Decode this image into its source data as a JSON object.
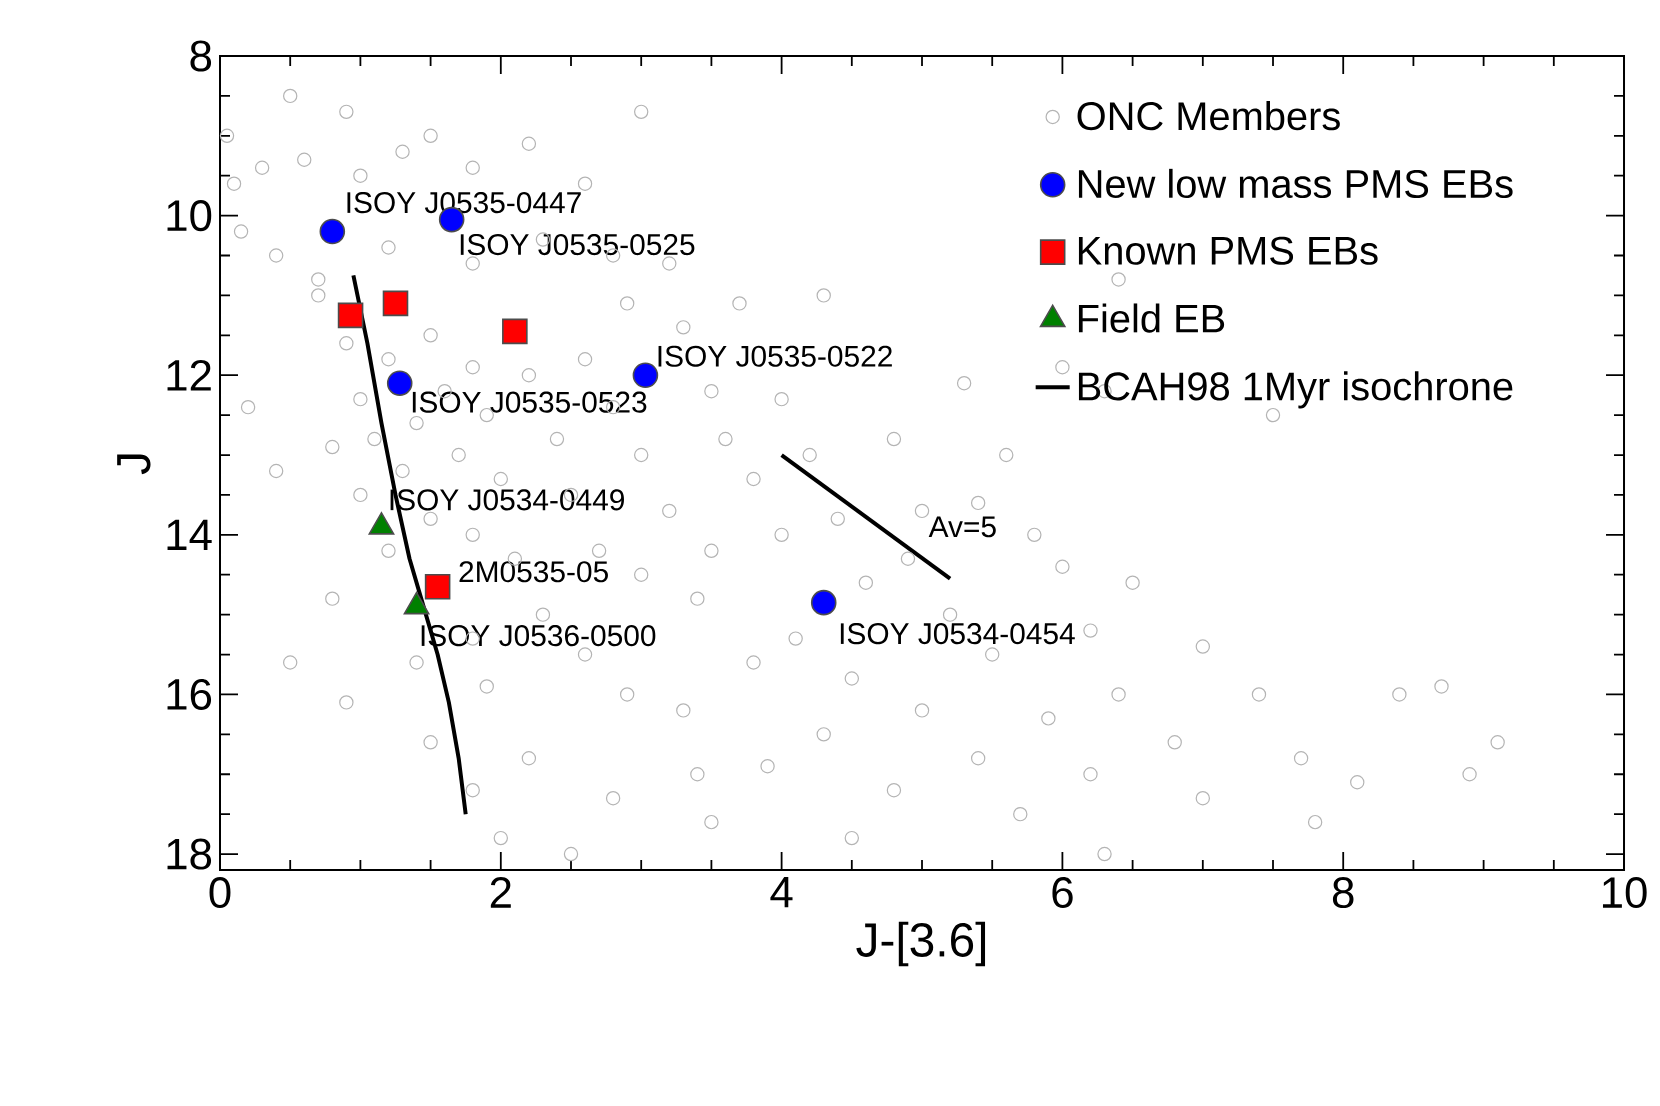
{
  "chart_data": {
    "type": "scatter",
    "xlabel": "J-[3.6]",
    "ylabel": "J",
    "xlim": [
      0,
      10
    ],
    "ylim": [
      18.2,
      8
    ],
    "xticks": [
      0,
      2,
      4,
      6,
      8,
      10
    ],
    "yticks": [
      8,
      10,
      12,
      14,
      16,
      18
    ],
    "legend": "top right",
    "series": [
      {
        "name": "ONC Members",
        "type": "scatter",
        "marker": "circle",
        "color": "#b4b4b4",
        "x": [
          0.05,
          0.1,
          0.15,
          0.3,
          0.5,
          0.6,
          0.9,
          1.0,
          1.3,
          1.5,
          1.8,
          2.2,
          3.0,
          2.6,
          0.4,
          0.7,
          1.2,
          1.8,
          2.3,
          2.8,
          3.2,
          0.9,
          1.0,
          1.1,
          1.2,
          1.3,
          1.4,
          1.5,
          1.6,
          1.7,
          1.8,
          1.9,
          2.0,
          2.2,
          2.4,
          2.6,
          2.5,
          2.8,
          3.0,
          1.2,
          1.5,
          1.8,
          2.1,
          1.0,
          0.8,
          0.7,
          2.9,
          3.3,
          3.5,
          3.6,
          3.2,
          3.8,
          4.0,
          4.2,
          2.7,
          3.0,
          3.4,
          2.3,
          1.8,
          1.4,
          1.9,
          2.6,
          2.9,
          3.3,
          3.8,
          3.5,
          4.0,
          4.4,
          4.6,
          4.1,
          4.5,
          4.9,
          5.0,
          4.8,
          5.3,
          5.6,
          5.4,
          5.8,
          5.2,
          5.5,
          5.0,
          4.3,
          3.9,
          3.4,
          2.8,
          2.2,
          1.5,
          0.9,
          0.8,
          4.8,
          5.4,
          5.9,
          6.2,
          6.4,
          6.8,
          6.2,
          7.0,
          7.4,
          7.7,
          8.1,
          8.4,
          8.7,
          8.9,
          9.1,
          7.0,
          6.5,
          7.5,
          6.3,
          6.0,
          6.4,
          3.5,
          4.5,
          1.8,
          2.5,
          6.3,
          7.8,
          0.2,
          0.4,
          0.5,
          2.0,
          3.7,
          4.3,
          6.0,
          5.7
        ],
        "values": [
          9.0,
          9.6,
          10.2,
          9.4,
          8.5,
          9.3,
          8.7,
          9.5,
          9.2,
          9.0,
          9.4,
          9.1,
          8.7,
          9.6,
          10.5,
          10.8,
          10.4,
          10.6,
          10.3,
          10.5,
          10.6,
          11.6,
          12.3,
          12.8,
          11.8,
          13.2,
          12.6,
          11.5,
          12.2,
          13.0,
          11.9,
          12.5,
          13.3,
          12.0,
          12.8,
          11.8,
          13.5,
          12.4,
          13.0,
          14.2,
          13.8,
          14.0,
          14.3,
          13.5,
          12.9,
          11.0,
          11.1,
          11.4,
          12.2,
          12.8,
          13.7,
          13.3,
          12.3,
          13.0,
          14.2,
          14.5,
          14.8,
          15.0,
          15.3,
          15.6,
          15.9,
          15.5,
          16.0,
          16.2,
          15.6,
          14.2,
          14.0,
          13.8,
          14.6,
          15.3,
          15.8,
          14.3,
          13.7,
          12.8,
          12.1,
          13.0,
          13.6,
          14.0,
          15.0,
          15.5,
          16.2,
          16.5,
          16.9,
          17.0,
          17.3,
          16.8,
          16.6,
          16.1,
          14.8,
          17.2,
          16.8,
          16.3,
          15.2,
          16.0,
          16.6,
          17.0,
          17.3,
          16.0,
          16.8,
          17.1,
          16.0,
          15.9,
          17.0,
          16.6,
          15.4,
          14.6,
          12.5,
          12.2,
          11.9,
          10.8,
          17.6,
          17.8,
          17.2,
          18.0,
          18.0,
          17.6,
          12.4,
          13.2,
          15.6,
          17.8,
          11.1,
          11.0,
          14.4,
          17.5
        ]
      },
      {
        "name": "New low mass PMS EBs",
        "type": "scatter",
        "marker": "circle",
        "color": "#0000ff",
        "x": [
          0.8,
          1.65,
          3.03,
          1.28,
          4.3
        ],
        "values": [
          10.2,
          10.05,
          12.0,
          12.1,
          14.85
        ]
      },
      {
        "name": "Known PMS EBs",
        "type": "scatter",
        "marker": "square",
        "color": "#ff0000",
        "x": [
          0.93,
          1.25,
          2.1,
          1.55
        ],
        "values": [
          11.25,
          11.1,
          11.45,
          14.65
        ]
      },
      {
        "name": "Field EB",
        "type": "scatter",
        "marker": "triangle",
        "color": "#008000",
        "x": [
          1.15,
          1.4
        ],
        "values": [
          13.9,
          14.9
        ]
      },
      {
        "name": "BCAH98 1Myr isochrone",
        "type": "line",
        "marker": "none",
        "color": "#000000",
        "x": [
          0.95,
          1.05,
          1.15,
          1.25,
          1.35,
          1.45,
          1.55,
          1.63,
          1.7,
          1.75
        ],
        "values": [
          10.75,
          11.6,
          12.6,
          13.5,
          14.3,
          14.9,
          15.5,
          16.1,
          16.8,
          17.5
        ]
      },
      {
        "type": "line",
        "marker": "none",
        "color": "#000000",
        "x": [
          4.0,
          5.2
        ],
        "values": [
          13.0,
          14.55
        ]
      }
    ],
    "annotations": [
      {
        "text": "ISOY J0535-0447",
        "x": 0.8,
        "y": 10.2
      },
      {
        "text": "ISOY J0535-0525",
        "x": 1.65,
        "y": 10.05
      },
      {
        "text": "ISOY J0535-0522",
        "x": 3.03,
        "y": 12.0
      },
      {
        "text": "ISOY J0535-0523",
        "x": 1.28,
        "y": 12.1
      },
      {
        "text": "ISOY J0534-0449",
        "x": 1.15,
        "y": 13.9
      },
      {
        "text": "2M0535-05",
        "x": 1.55,
        "y": 14.65
      },
      {
        "text": "ISOY J0536-0500",
        "x": 1.4,
        "y": 14.9
      },
      {
        "text": "ISOY J0534-0454",
        "x": 4.3,
        "y": 14.85
      },
      {
        "text": "Av=5",
        "x": 5.03,
        "y": 13.9
      }
    ]
  }
}
